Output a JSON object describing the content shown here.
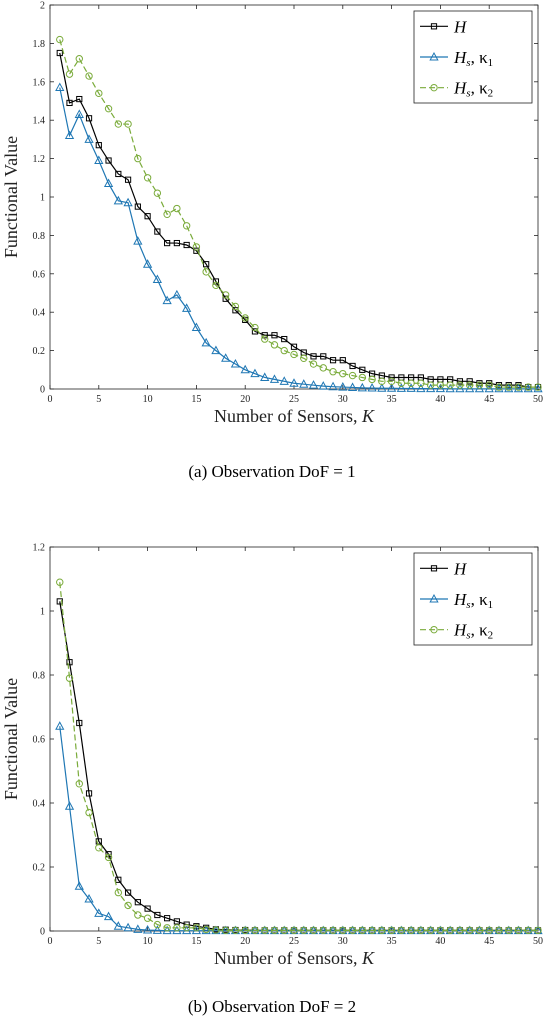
{
  "chart_data": [
    {
      "type": "line",
      "caption": "(a) Observation DoF = 1",
      "xlabel": "Number of Sensors, K",
      "ylabel": "Functional Value",
      "xlim": [
        0,
        50
      ],
      "ylim": [
        0,
        2
      ],
      "xticks": [
        0,
        5,
        10,
        15,
        20,
        25,
        30,
        35,
        40,
        45,
        50
      ],
      "yticks": [
        0,
        0.2,
        0.4,
        0.6,
        0.8,
        1,
        1.2,
        1.4,
        1.6,
        1.8,
        2
      ],
      "ytick_labels": [
        "0",
        "0.2",
        "0.4",
        "0.6",
        "0.8",
        "1",
        "1.2",
        "1.4",
        "1.6",
        "1.8",
        "2"
      ],
      "grid": false,
      "legend_position": "top-right",
      "series": [
        {
          "name": "H",
          "legend_main": "H",
          "legend_rest": "",
          "color": "#000000",
          "marker": "square",
          "dash": "solid",
          "x": [
            1,
            2,
            3,
            4,
            5,
            6,
            7,
            8,
            9,
            10,
            11,
            12,
            13,
            14,
            15,
            16,
            17,
            18,
            19,
            20,
            21,
            22,
            23,
            24,
            25,
            26,
            27,
            28,
            29,
            30,
            31,
            32,
            33,
            34,
            35,
            36,
            37,
            38,
            39,
            40,
            41,
            42,
            43,
            44,
            45,
            46,
            47,
            48,
            49,
            50
          ],
          "values": [
            1.75,
            1.49,
            1.51,
            1.41,
            1.27,
            1.19,
            1.12,
            1.09,
            0.95,
            0.9,
            0.82,
            0.76,
            0.76,
            0.75,
            0.72,
            0.65,
            0.56,
            0.47,
            0.41,
            0.36,
            0.3,
            0.28,
            0.28,
            0.26,
            0.22,
            0.19,
            0.17,
            0.17,
            0.15,
            0.15,
            0.12,
            0.1,
            0.08,
            0.07,
            0.06,
            0.06,
            0.06,
            0.06,
            0.05,
            0.05,
            0.05,
            0.04,
            0.04,
            0.03,
            0.03,
            0.02,
            0.02,
            0.02,
            0.01,
            0.01
          ]
        },
        {
          "name": "Hs, κ1",
          "legend_main": "H",
          "legend_sub": "s",
          "legend_rest": ", κ",
          "legend_rest_sub": "1",
          "color": "#1f77b4",
          "marker": "triangle",
          "dash": "solid",
          "x": [
            1,
            2,
            3,
            4,
            5,
            6,
            7,
            8,
            9,
            10,
            11,
            12,
            13,
            14,
            15,
            16,
            17,
            18,
            19,
            20,
            21,
            22,
            23,
            24,
            25,
            26,
            27,
            28,
            29,
            30,
            31,
            32,
            33,
            34,
            35,
            36,
            37,
            38,
            39,
            40,
            41,
            42,
            43,
            44,
            45,
            46,
            47,
            48,
            49,
            50
          ],
          "values": [
            1.57,
            1.32,
            1.43,
            1.3,
            1.19,
            1.07,
            0.98,
            0.97,
            0.77,
            0.65,
            0.57,
            0.46,
            0.49,
            0.42,
            0.32,
            0.24,
            0.2,
            0.16,
            0.13,
            0.1,
            0.08,
            0.06,
            0.05,
            0.04,
            0.03,
            0.025,
            0.02,
            0.015,
            0.012,
            0.01,
            0.008,
            0.006,
            0.005,
            0.004,
            0.004,
            0.003,
            0.003,
            0.002,
            0.002,
            0.002,
            0.001,
            0.001,
            0.001,
            0.001,
            0.001,
            0.001,
            0.001,
            0.001,
            0.001,
            0.001
          ]
        },
        {
          "name": "Hs, κ2",
          "legend_main": "H",
          "legend_sub": "s",
          "legend_rest": ", κ",
          "legend_rest_sub": "2",
          "color": "#7aab3a",
          "marker": "circle",
          "dash": "dashed",
          "x": [
            1,
            2,
            3,
            4,
            5,
            6,
            7,
            8,
            9,
            10,
            11,
            12,
            13,
            14,
            15,
            16,
            17,
            18,
            19,
            20,
            21,
            22,
            23,
            24,
            25,
            26,
            27,
            28,
            29,
            30,
            31,
            32,
            33,
            34,
            35,
            36,
            37,
            38,
            39,
            40,
            41,
            42,
            43,
            44,
            45,
            46,
            47,
            48,
            49,
            50
          ],
          "values": [
            1.82,
            1.64,
            1.72,
            1.63,
            1.54,
            1.46,
            1.38,
            1.38,
            1.2,
            1.1,
            1.02,
            0.91,
            0.94,
            0.85,
            0.74,
            0.61,
            0.54,
            0.49,
            0.43,
            0.37,
            0.32,
            0.26,
            0.23,
            0.2,
            0.18,
            0.16,
            0.13,
            0.11,
            0.09,
            0.08,
            0.07,
            0.06,
            0.05,
            0.04,
            0.04,
            0.03,
            0.03,
            0.03,
            0.02,
            0.02,
            0.02,
            0.02,
            0.02,
            0.02,
            0.02,
            0.01,
            0.01,
            0.01,
            0.01,
            0.01
          ]
        }
      ]
    },
    {
      "type": "line",
      "caption": "(b) Observation DoF = 2",
      "xlabel": "Number of Sensors, K",
      "ylabel": "Functional Value",
      "xlim": [
        0,
        50
      ],
      "ylim": [
        0,
        1.2
      ],
      "xticks": [
        0,
        5,
        10,
        15,
        20,
        25,
        30,
        35,
        40,
        45,
        50
      ],
      "yticks": [
        0,
        0.2,
        0.4,
        0.6,
        0.8,
        1,
        1.2
      ],
      "ytick_labels": [
        "0",
        "0.2",
        "0.4",
        "0.6",
        "0.8",
        "1",
        "1.2"
      ],
      "grid": false,
      "legend_position": "top-right",
      "series": [
        {
          "name": "H",
          "legend_main": "H",
          "legend_rest": "",
          "color": "#000000",
          "marker": "square",
          "dash": "solid",
          "x": [
            1,
            2,
            3,
            4,
            5,
            6,
            7,
            8,
            9,
            10,
            11,
            12,
            13,
            14,
            15,
            16,
            17,
            18,
            19,
            20,
            21,
            22,
            23,
            24,
            25,
            26,
            27,
            28,
            29,
            30,
            31,
            32,
            33,
            34,
            35,
            36,
            37,
            38,
            39,
            40,
            41,
            42,
            43,
            44,
            45,
            46,
            47,
            48,
            49,
            50
          ],
          "values": [
            1.03,
            0.84,
            0.65,
            0.43,
            0.28,
            0.24,
            0.16,
            0.12,
            0.09,
            0.07,
            0.05,
            0.04,
            0.03,
            0.02,
            0.015,
            0.01,
            0.005,
            0.004,
            0.003,
            0.003,
            0.002,
            0.002,
            0.002,
            0.002,
            0.002,
            0.002,
            0.002,
            0.002,
            0.002,
            0.002,
            0.002,
            0.002,
            0.002,
            0.002,
            0.002,
            0.002,
            0.002,
            0.002,
            0.002,
            0.002,
            0.002,
            0.002,
            0.002,
            0.002,
            0.002,
            0.002,
            0.002,
            0.002,
            0.002,
            0.002
          ]
        },
        {
          "name": "Hs, κ1",
          "legend_main": "H",
          "legend_sub": "s",
          "legend_rest": ", κ",
          "legend_rest_sub": "1",
          "color": "#1f77b4",
          "marker": "triangle",
          "dash": "solid",
          "x": [
            1,
            2,
            3,
            4,
            5,
            6,
            7,
            8,
            9,
            10,
            11,
            12,
            13,
            14,
            15,
            16,
            17,
            18,
            19,
            20,
            21,
            22,
            23,
            24,
            25,
            26,
            27,
            28,
            29,
            30,
            31,
            32,
            33,
            34,
            35,
            36,
            37,
            38,
            39,
            40,
            41,
            42,
            43,
            44,
            45,
            46,
            47,
            48,
            49,
            50
          ],
          "values": [
            0.64,
            0.39,
            0.14,
            0.1,
            0.055,
            0.045,
            0.015,
            0.01,
            0.005,
            0.003,
            0.002,
            0.001,
            0.001,
            0.001,
            0.001,
            0.001,
            0.001,
            0.001,
            0.001,
            0.001,
            0.001,
            0.001,
            0.001,
            0.001,
            0.001,
            0.001,
            0.001,
            0.001,
            0.001,
            0.001,
            0.001,
            0.001,
            0.001,
            0.001,
            0.001,
            0.001,
            0.001,
            0.001,
            0.001,
            0.001,
            0.001,
            0.001,
            0.001,
            0.001,
            0.001,
            0.001,
            0.001,
            0.001,
            0.001,
            0.001
          ]
        },
        {
          "name": "Hs, κ2",
          "legend_main": "H",
          "legend_sub": "s",
          "legend_rest": ", κ",
          "legend_rest_sub": "2",
          "color": "#7aab3a",
          "marker": "circle",
          "dash": "dashed",
          "x": [
            1,
            2,
            3,
            4,
            5,
            6,
            7,
            8,
            9,
            10,
            11,
            12,
            13,
            14,
            15,
            16,
            17,
            18,
            19,
            20,
            21,
            22,
            23,
            24,
            25,
            26,
            27,
            28,
            29,
            30,
            31,
            32,
            33,
            34,
            35,
            36,
            37,
            38,
            39,
            40,
            41,
            42,
            43,
            44,
            45,
            46,
            47,
            48,
            49,
            50
          ],
          "values": [
            1.09,
            0.79,
            0.46,
            0.37,
            0.26,
            0.23,
            0.12,
            0.08,
            0.05,
            0.04,
            0.02,
            0.01,
            0.01,
            0.01,
            0.01,
            0.005,
            0.003,
            0.002,
            0.002,
            0.002,
            0.002,
            0.002,
            0.002,
            0.002,
            0.002,
            0.002,
            0.002,
            0.002,
            0.002,
            0.002,
            0.002,
            0.002,
            0.002,
            0.002,
            0.002,
            0.002,
            0.002,
            0.002,
            0.002,
            0.002,
            0.002,
            0.002,
            0.002,
            0.002,
            0.002,
            0.002,
            0.002,
            0.002,
            0.002,
            0.002
          ]
        }
      ]
    }
  ]
}
